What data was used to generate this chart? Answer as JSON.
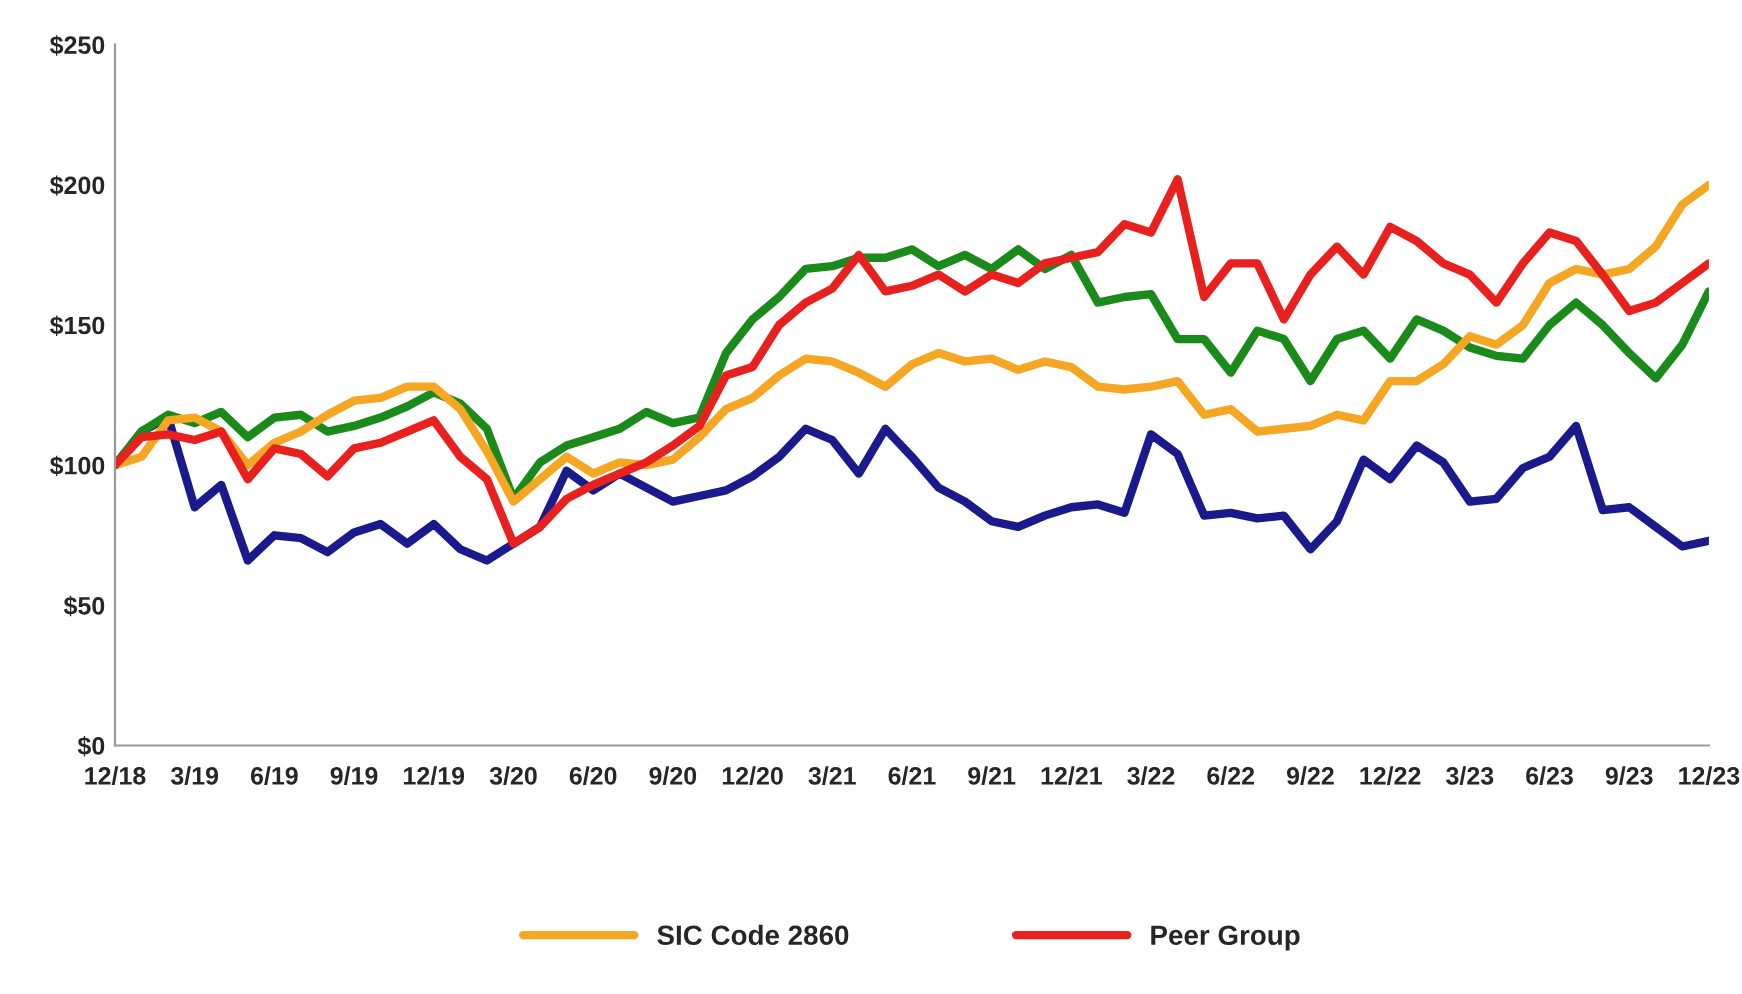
{
  "chart_data": {
    "type": "line",
    "categories": [
      "12/18",
      null,
      null,
      "3/19",
      null,
      null,
      "6/19",
      null,
      null,
      "9/19",
      null,
      null,
      "12/19",
      null,
      null,
      "3/20",
      null,
      null,
      "6/20",
      null,
      null,
      "9/20",
      null,
      null,
      "12/20",
      null,
      null,
      "3/21",
      null,
      null,
      "6/21",
      null,
      null,
      "9/21",
      null,
      null,
      "12/21",
      null,
      null,
      "3/22",
      null,
      null,
      "6/22",
      null,
      null,
      "9/22",
      null,
      null,
      "12/22",
      null,
      null,
      "3/23",
      null,
      null,
      "6/23",
      null,
      null,
      "9/23",
      null,
      null,
      "12/23"
    ],
    "series": [
      {
        "color": "#1a1a8c",
        "values": [
          100,
          112,
          117,
          85,
          93,
          66,
          75,
          74,
          69,
          76,
          79,
          72,
          79,
          70,
          66,
          72,
          78,
          98,
          91,
          97,
          92,
          87,
          89,
          91,
          96,
          103,
          113,
          109,
          97,
          113,
          103,
          92,
          87,
          80,
          78,
          82,
          85,
          86,
          83,
          111,
          104,
          82,
          83,
          81,
          82,
          70,
          80,
          102,
          95,
          107,
          101,
          87,
          88,
          99,
          103,
          114,
          84,
          85,
          78,
          71,
          73
        ]
      },
      {
        "color": "#1a8a1a",
        "values": [
          100,
          112,
          118,
          115,
          119,
          110,
          117,
          118,
          112,
          114,
          117,
          121,
          126,
          122,
          113,
          88,
          101,
          107,
          110,
          113,
          119,
          115,
          117,
          140,
          152,
          160,
          170,
          171,
          174,
          174,
          177,
          171,
          175,
          170,
          177,
          170,
          175,
          158,
          160,
          161,
          145,
          145,
          133,
          148,
          145,
          130,
          145,
          148,
          138,
          152,
          148,
          142,
          139,
          138,
          150,
          158,
          150,
          140,
          131,
          143,
          162
        ]
      },
      {
        "name": "SIC Code 2860",
        "color": "#f5a623",
        "values": [
          100,
          103,
          116,
          117,
          112,
          100,
          108,
          112,
          118,
          123,
          124,
          128,
          128,
          120,
          105,
          87,
          95,
          103,
          97,
          101,
          100,
          102,
          110,
          120,
          124,
          132,
          138,
          137,
          133,
          128,
          136,
          140,
          137,
          138,
          134,
          137,
          135,
          128,
          127,
          128,
          130,
          118,
          120,
          112,
          113,
          114,
          118,
          116,
          130,
          130,
          136,
          146,
          143,
          150,
          165,
          170,
          168,
          170,
          178,
          193,
          200
        ]
      },
      {
        "name": "Peer Group",
        "color": "#e8201e",
        "values": [
          100,
          110,
          111,
          109,
          112,
          95,
          106,
          104,
          96,
          106,
          108,
          112,
          116,
          103,
          95,
          72,
          78,
          88,
          93,
          97,
          101,
          107,
          114,
          132,
          135,
          150,
          158,
          163,
          175,
          162,
          164,
          168,
          162,
          168,
          165,
          172,
          174,
          176,
          186,
          183,
          202,
          160,
          172,
          172,
          152,
          168,
          178,
          168,
          185,
          180,
          172,
          168,
          158,
          172,
          183,
          180,
          168,
          155,
          158,
          165,
          172
        ]
      }
    ],
    "ylim": [
      0,
      250
    ],
    "yticks": [
      {
        "value": 0,
        "label": "$0"
      },
      {
        "value": 50,
        "label": "$50"
      },
      {
        "value": 100,
        "label": "$100"
      },
      {
        "value": 150,
        "label": "$150"
      },
      {
        "value": 200,
        "label": "$200"
      },
      {
        "value": 250,
        "label": "$250"
      }
    ],
    "grid": false,
    "legend": "bottom",
    "marker": "none",
    "line_style": "solid"
  }
}
